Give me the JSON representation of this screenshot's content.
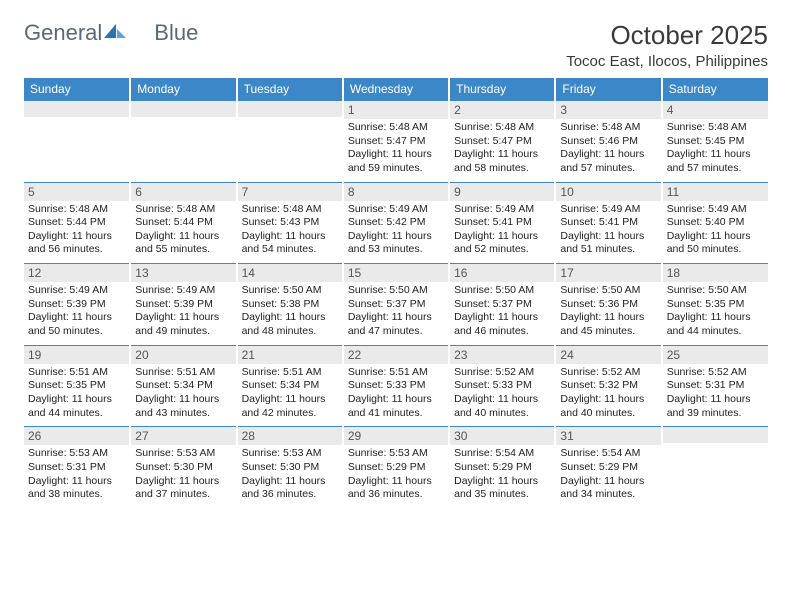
{
  "brand": {
    "word1": "General",
    "word2": "Blue"
  },
  "colors": {
    "header_bg": "#3c87c8",
    "header_text": "#ffffff",
    "daynum_bg": "#eaeaea",
    "cell_border": "#3c87c8",
    "page_bg": "#ffffff",
    "title_color": "#3a3a3a",
    "logo_color": "#5a6a74"
  },
  "title": "October 2025",
  "location": "Tococ East, Ilocos, Philippines",
  "dow": [
    "Sunday",
    "Monday",
    "Tuesday",
    "Wednesday",
    "Thursday",
    "Friday",
    "Saturday"
  ],
  "weeks": [
    [
      {
        "n": "",
        "sr": "",
        "ss": "",
        "dl": ""
      },
      {
        "n": "",
        "sr": "",
        "ss": "",
        "dl": ""
      },
      {
        "n": "",
        "sr": "",
        "ss": "",
        "dl": ""
      },
      {
        "n": "1",
        "sr": "Sunrise: 5:48 AM",
        "ss": "Sunset: 5:47 PM",
        "dl": "Daylight: 11 hours and 59 minutes."
      },
      {
        "n": "2",
        "sr": "Sunrise: 5:48 AM",
        "ss": "Sunset: 5:47 PM",
        "dl": "Daylight: 11 hours and 58 minutes."
      },
      {
        "n": "3",
        "sr": "Sunrise: 5:48 AM",
        "ss": "Sunset: 5:46 PM",
        "dl": "Daylight: 11 hours and 57 minutes."
      },
      {
        "n": "4",
        "sr": "Sunrise: 5:48 AM",
        "ss": "Sunset: 5:45 PM",
        "dl": "Daylight: 11 hours and 57 minutes."
      }
    ],
    [
      {
        "n": "5",
        "sr": "Sunrise: 5:48 AM",
        "ss": "Sunset: 5:44 PM",
        "dl": "Daylight: 11 hours and 56 minutes."
      },
      {
        "n": "6",
        "sr": "Sunrise: 5:48 AM",
        "ss": "Sunset: 5:44 PM",
        "dl": "Daylight: 11 hours and 55 minutes."
      },
      {
        "n": "7",
        "sr": "Sunrise: 5:48 AM",
        "ss": "Sunset: 5:43 PM",
        "dl": "Daylight: 11 hours and 54 minutes."
      },
      {
        "n": "8",
        "sr": "Sunrise: 5:49 AM",
        "ss": "Sunset: 5:42 PM",
        "dl": "Daylight: 11 hours and 53 minutes."
      },
      {
        "n": "9",
        "sr": "Sunrise: 5:49 AM",
        "ss": "Sunset: 5:41 PM",
        "dl": "Daylight: 11 hours and 52 minutes."
      },
      {
        "n": "10",
        "sr": "Sunrise: 5:49 AM",
        "ss": "Sunset: 5:41 PM",
        "dl": "Daylight: 11 hours and 51 minutes."
      },
      {
        "n": "11",
        "sr": "Sunrise: 5:49 AM",
        "ss": "Sunset: 5:40 PM",
        "dl": "Daylight: 11 hours and 50 minutes."
      }
    ],
    [
      {
        "n": "12",
        "sr": "Sunrise: 5:49 AM",
        "ss": "Sunset: 5:39 PM",
        "dl": "Daylight: 11 hours and 50 minutes."
      },
      {
        "n": "13",
        "sr": "Sunrise: 5:49 AM",
        "ss": "Sunset: 5:39 PM",
        "dl": "Daylight: 11 hours and 49 minutes."
      },
      {
        "n": "14",
        "sr": "Sunrise: 5:50 AM",
        "ss": "Sunset: 5:38 PM",
        "dl": "Daylight: 11 hours and 48 minutes."
      },
      {
        "n": "15",
        "sr": "Sunrise: 5:50 AM",
        "ss": "Sunset: 5:37 PM",
        "dl": "Daylight: 11 hours and 47 minutes."
      },
      {
        "n": "16",
        "sr": "Sunrise: 5:50 AM",
        "ss": "Sunset: 5:37 PM",
        "dl": "Daylight: 11 hours and 46 minutes."
      },
      {
        "n": "17",
        "sr": "Sunrise: 5:50 AM",
        "ss": "Sunset: 5:36 PM",
        "dl": "Daylight: 11 hours and 45 minutes."
      },
      {
        "n": "18",
        "sr": "Sunrise: 5:50 AM",
        "ss": "Sunset: 5:35 PM",
        "dl": "Daylight: 11 hours and 44 minutes."
      }
    ],
    [
      {
        "n": "19",
        "sr": "Sunrise: 5:51 AM",
        "ss": "Sunset: 5:35 PM",
        "dl": "Daylight: 11 hours and 44 minutes."
      },
      {
        "n": "20",
        "sr": "Sunrise: 5:51 AM",
        "ss": "Sunset: 5:34 PM",
        "dl": "Daylight: 11 hours and 43 minutes."
      },
      {
        "n": "21",
        "sr": "Sunrise: 5:51 AM",
        "ss": "Sunset: 5:34 PM",
        "dl": "Daylight: 11 hours and 42 minutes."
      },
      {
        "n": "22",
        "sr": "Sunrise: 5:51 AM",
        "ss": "Sunset: 5:33 PM",
        "dl": "Daylight: 11 hours and 41 minutes."
      },
      {
        "n": "23",
        "sr": "Sunrise: 5:52 AM",
        "ss": "Sunset: 5:33 PM",
        "dl": "Daylight: 11 hours and 40 minutes."
      },
      {
        "n": "24",
        "sr": "Sunrise: 5:52 AM",
        "ss": "Sunset: 5:32 PM",
        "dl": "Daylight: 11 hours and 40 minutes."
      },
      {
        "n": "25",
        "sr": "Sunrise: 5:52 AM",
        "ss": "Sunset: 5:31 PM",
        "dl": "Daylight: 11 hours and 39 minutes."
      }
    ],
    [
      {
        "n": "26",
        "sr": "Sunrise: 5:53 AM",
        "ss": "Sunset: 5:31 PM",
        "dl": "Daylight: 11 hours and 38 minutes."
      },
      {
        "n": "27",
        "sr": "Sunrise: 5:53 AM",
        "ss": "Sunset: 5:30 PM",
        "dl": "Daylight: 11 hours and 37 minutes."
      },
      {
        "n": "28",
        "sr": "Sunrise: 5:53 AM",
        "ss": "Sunset: 5:30 PM",
        "dl": "Daylight: 11 hours and 36 minutes."
      },
      {
        "n": "29",
        "sr": "Sunrise: 5:53 AM",
        "ss": "Sunset: 5:29 PM",
        "dl": "Daylight: 11 hours and 36 minutes."
      },
      {
        "n": "30",
        "sr": "Sunrise: 5:54 AM",
        "ss": "Sunset: 5:29 PM",
        "dl": "Daylight: 11 hours and 35 minutes."
      },
      {
        "n": "31",
        "sr": "Sunrise: 5:54 AM",
        "ss": "Sunset: 5:29 PM",
        "dl": "Daylight: 11 hours and 34 minutes."
      },
      {
        "n": "",
        "sr": "",
        "ss": "",
        "dl": ""
      }
    ]
  ]
}
